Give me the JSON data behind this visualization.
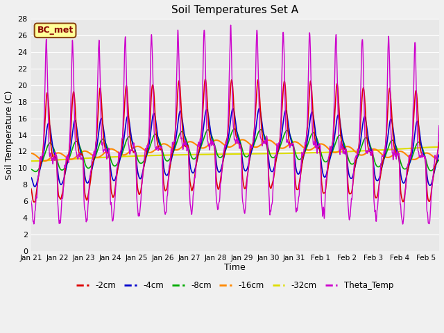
{
  "title": "Soil Temperatures Set A",
  "xlabel": "Time",
  "ylabel": "Soil Temperature (C)",
  "annotation": "BC_met",
  "ylim": [
    0,
    28
  ],
  "fig_facecolor": "#f0f0f0",
  "plot_facecolor": "#e8e8e8",
  "series_colors": {
    "-2cm": "#dd0000",
    "-4cm": "#0000cc",
    "-8cm": "#00aa00",
    "-16cm": "#ff8800",
    "-32cm": "#dddd00",
    "Theta_Temp": "#cc00cc"
  },
  "tick_labels": [
    "Jan 21",
    "Jan 22",
    "Jan 23",
    "Jan 24",
    "Jan 25",
    "Jan 26",
    "Jan 27",
    "Jan 28",
    "Jan 29",
    "Jan 30",
    "Jan 31",
    "Feb 1",
    "Feb 2",
    "Feb 3",
    "Feb 4",
    "Feb 5"
  ],
  "num_days": 15.5,
  "points_per_day": 144
}
